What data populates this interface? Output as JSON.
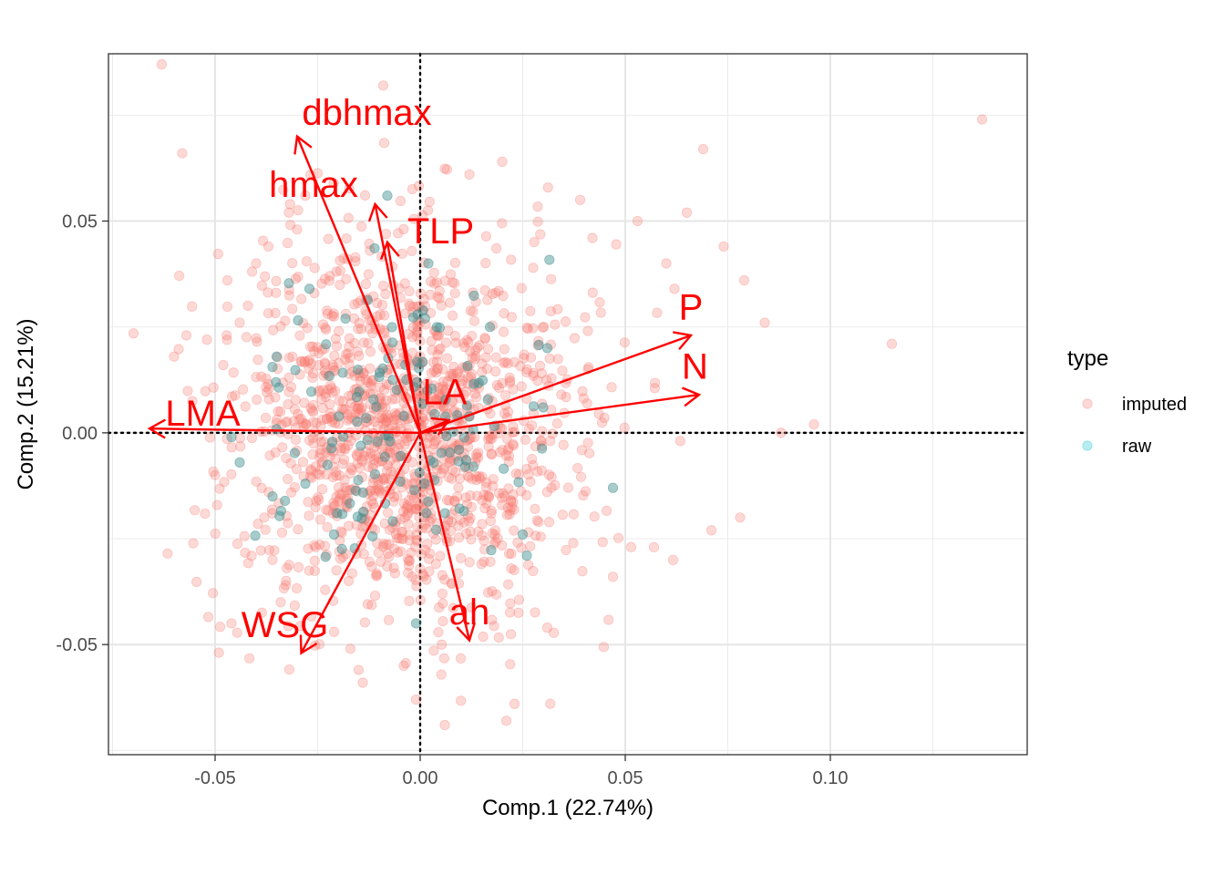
{
  "chart_data": {
    "type": "scatter",
    "xlabel": "Comp.1 (22.74%)",
    "ylabel": "Comp.2 (15.21%)",
    "xlim": [
      -0.076,
      0.148
    ],
    "ylim": [
      -0.076,
      0.0895
    ],
    "x_ticks": [
      -0.05,
      0.0,
      0.05,
      0.1
    ],
    "x_tick_labels": [
      "-0.05",
      "0.00",
      "0.05",
      "0.10"
    ],
    "y_ticks": [
      -0.05,
      0.0,
      0.05
    ],
    "y_tick_labels": [
      "-0.05",
      "0.00",
      "0.05"
    ],
    "grid": true,
    "reference_lines": {
      "x": 0,
      "y": 0,
      "style": "dotted"
    },
    "legend": {
      "title": "type",
      "position": "right",
      "entries": [
        {
          "label": "imputed",
          "color": "#F8766D"
        },
        {
          "label": "raw",
          "color": "#00BFC4"
        }
      ]
    },
    "point_cloud": {
      "imputed": {
        "approx_count": 1400,
        "center": [
          -0.004,
          0.0
        ],
        "sd": [
          0.021,
          0.022
        ]
      },
      "raw": {
        "approx_count": 120,
        "center": [
          -0.004,
          0.0
        ],
        "sd": [
          0.018,
          0.018
        ]
      }
    },
    "series": [
      {
        "name": "imputed",
        "color": "#F8766D",
        "points": [
          [
            -0.063,
            0.087
          ],
          [
            -0.058,
            0.066
          ],
          [
            -0.06,
            0.018
          ],
          [
            -0.057,
            0.023
          ],
          [
            -0.052,
            0.022
          ],
          [
            -0.048,
            0.016
          ],
          [
            -0.046,
            -0.045
          ],
          [
            -0.05,
            -0.01
          ],
          [
            -0.047,
            0.036
          ],
          [
            -0.009,
            0.082
          ],
          [
            0.069,
            0.067
          ],
          [
            0.074,
            0.044
          ],
          [
            0.065,
            0.052
          ],
          [
            0.084,
            0.026
          ],
          [
            0.079,
            0.036
          ],
          [
            0.115,
            0.021
          ],
          [
            0.096,
            0.002
          ],
          [
            0.088,
            0.0
          ],
          [
            0.137,
            0.074
          ],
          [
            0.078,
            -0.02
          ],
          [
            0.071,
            -0.023
          ],
          [
            0.057,
            -0.027
          ],
          [
            0.047,
            -0.034
          ],
          [
            0.031,
            -0.046
          ],
          [
            0.023,
            -0.064
          ],
          [
            0.021,
            -0.068
          ],
          [
            0.006,
            -0.069
          ],
          [
            -0.001,
            -0.063
          ],
          [
            -0.014,
            -0.059
          ],
          [
            -0.015,
            -0.056
          ],
          [
            -0.004,
            -0.055
          ],
          [
            -0.017,
            -0.051
          ],
          [
            -0.021,
            -0.047
          ],
          [
            0.012,
            0.061
          ],
          [
            0.02,
            0.064
          ],
          [
            0.039,
            0.055
          ],
          [
            0.042,
            0.046
          ],
          [
            0.053,
            0.05
          ],
          [
            0.06,
            0.04
          ],
          [
            0.062,
            0.034
          ],
          [
            -0.037,
            0.044
          ],
          [
            -0.04,
            0.04
          ],
          [
            -0.042,
            0.03
          ],
          [
            -0.044,
            0.026
          ],
          [
            -0.038,
            -0.02
          ],
          [
            -0.036,
            -0.03
          ],
          [
            -0.034,
            -0.04
          ],
          [
            -0.03,
            0.048
          ],
          [
            -0.032,
            0.052
          ],
          [
            -0.028,
            0.056
          ]
        ]
      },
      {
        "name": "raw",
        "color": "#00BFC4",
        "points": [
          [
            -0.008,
            0.056
          ],
          [
            -0.027,
            0.034
          ],
          [
            -0.035,
            0.018
          ],
          [
            -0.046,
            -0.001
          ],
          [
            -0.044,
            -0.007
          ],
          [
            0.002,
            0.04
          ],
          [
            0.017,
            0.025
          ],
          [
            0.031,
            0.02
          ],
          [
            0.03,
            0.006
          ],
          [
            0.047,
            -0.013
          ],
          [
            0.026,
            -0.029
          ],
          [
            0.025,
            -0.024
          ],
          [
            -0.001,
            -0.045
          ],
          [
            -0.021,
            -0.024
          ],
          [
            -0.028,
            -0.012
          ],
          [
            -0.036,
            -0.015
          ],
          [
            0.011,
            -0.008
          ],
          [
            0.013,
            -0.008
          ],
          [
            -0.004,
            0.004
          ],
          [
            0.001,
            -0.012
          ]
        ]
      }
    ],
    "loadings": [
      {
        "label": "dbhmax",
        "x": -0.03,
        "y": 0.07,
        "lx": -0.013,
        "ly": 0.075
      },
      {
        "label": "hmax",
        "x": -0.011,
        "y": 0.054,
        "lx": -0.026,
        "ly": 0.058
      },
      {
        "label": "TLP",
        "x": -0.008,
        "y": 0.045,
        "lx": 0.005,
        "ly": 0.047
      },
      {
        "label": "P",
        "x": 0.066,
        "y": 0.023,
        "lx": 0.066,
        "ly": 0.029
      },
      {
        "label": "N",
        "x": 0.068,
        "y": 0.009,
        "lx": 0.067,
        "ly": 0.015
      },
      {
        "label": "LA",
        "x": 0.007,
        "y": 0.003,
        "lx": 0.006,
        "ly": 0.009
      },
      {
        "label": "LMA",
        "x": -0.066,
        "y": 0.001,
        "lx": -0.053,
        "ly": 0.004
      },
      {
        "label": "WSG",
        "x": -0.029,
        "y": -0.052,
        "lx": -0.033,
        "ly": -0.046
      },
      {
        "label": "ah",
        "x": 0.012,
        "y": -0.049,
        "lx": 0.012,
        "ly": -0.043
      }
    ],
    "loading_color": "#FF0000"
  }
}
